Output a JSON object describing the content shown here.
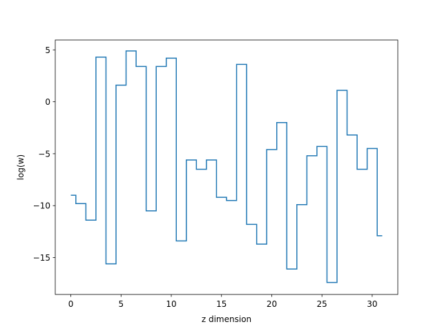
{
  "chart_data": {
    "type": "line",
    "drawstyle": "steps-mid",
    "xlabel": "z dimension",
    "ylabel": "log(w)",
    "xlim": [
      -1.55,
      32.55
    ],
    "ylim": [
      -18.55,
      5.95
    ],
    "xticks": [
      0,
      5,
      10,
      15,
      20,
      25,
      30
    ],
    "yticks": [
      -15,
      -10,
      -5,
      0,
      5
    ],
    "xtick_labels": [
      "0",
      "5",
      "10",
      "15",
      "20",
      "25",
      "30"
    ],
    "ytick_labels": [
      "−15",
      "−10",
      "−5",
      "0",
      "5"
    ],
    "grid": false,
    "line_color": "#1f77b4",
    "x": [
      0,
      1,
      2,
      3,
      4,
      5,
      6,
      7,
      8,
      9,
      10,
      11,
      12,
      13,
      14,
      15,
      16,
      17,
      18,
      19,
      20,
      21,
      22,
      23,
      24,
      25,
      26,
      27,
      28,
      29,
      30,
      31
    ],
    "values": [
      -9.0,
      -9.8,
      -11.4,
      4.3,
      -15.6,
      1.6,
      4.9,
      3.4,
      -10.5,
      3.4,
      4.2,
      -13.4,
      -5.6,
      -6.5,
      -5.6,
      -9.2,
      -9.5,
      3.6,
      -11.8,
      -13.7,
      -4.6,
      -2.0,
      -16.1,
      -9.9,
      -5.2,
      -4.3,
      -17.4,
      1.1,
      -3.2,
      -6.5,
      -4.5,
      -12.9
    ]
  }
}
